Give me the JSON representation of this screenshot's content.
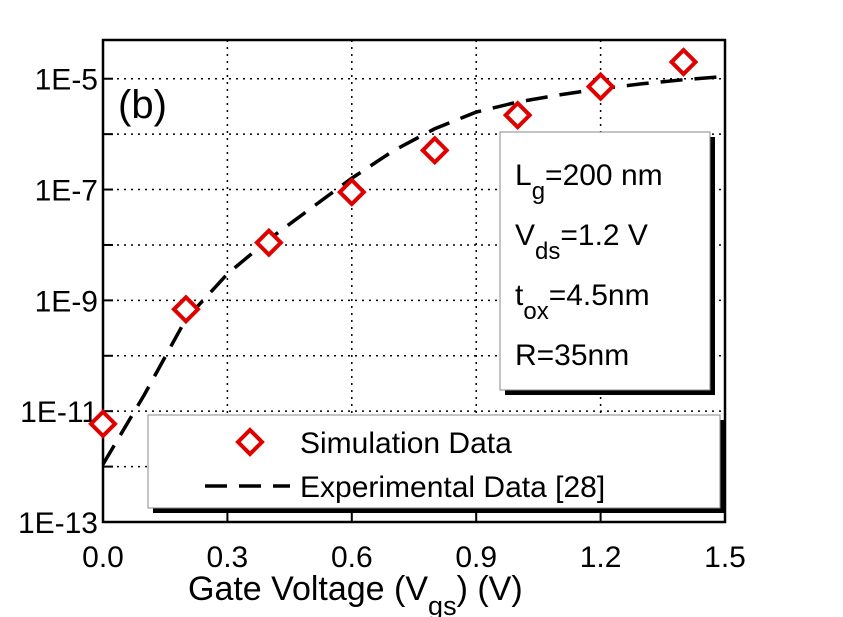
{
  "chart_data": {
    "type": "scatter",
    "annotation": "(b)",
    "info_box": [
      [
        {
          "text": "L"
        },
        {
          "text": "g",
          "sub": true
        },
        {
          "text": "=200 nm"
        }
      ],
      [
        {
          "text": "V"
        },
        {
          "text": "ds",
          "sub": true
        },
        {
          "text": "=1.2 V"
        }
      ],
      [
        {
          "text": "t"
        },
        {
          "text": "ox",
          "sub": true
        },
        {
          "text": "=4.5nm"
        }
      ],
      [
        {
          "text": "R=35nm"
        }
      ]
    ],
    "x_label": [
      {
        "text": "Gate Voltage (V"
      },
      {
        "text": "gs",
        "sub": true
      },
      {
        "text": ") (V)"
      }
    ],
    "xlim": [
      0,
      1.5
    ],
    "xticks": [
      {
        "value": 0,
        "label": "0.0"
      },
      0.3,
      0.6,
      0.9,
      1.2,
      1.5
    ],
    "ylim": [
      1e-13,
      5e-05
    ],
    "y_scale": "log",
    "yticks": [
      {
        "value": 1e-13,
        "label": "1E-13"
      },
      {
        "value": 1e-11,
        "label": "1E-11"
      },
      {
        "value": 1e-09,
        "label": "1E-9"
      },
      {
        "value": 1e-07,
        "label": "1E-7"
      },
      {
        "value": 1e-05,
        "label": "1E-5"
      }
    ],
    "y_minor_ticks": [
      1e-12,
      1e-10,
      1e-08,
      1e-06
    ],
    "grid": true,
    "legend": "bottom",
    "series": [
      {
        "name": "Simulation Data",
        "type": "scatter",
        "color": "#e00000",
        "x": [
          0,
          0.2,
          0.4,
          0.6,
          0.8,
          1.0,
          1.2,
          1.4
        ],
        "values": [
          5.9e-12,
          6.9e-10,
          1.1e-08,
          9e-08,
          5.1e-07,
          2.2e-06,
          7.2e-06,
          2e-05
        ]
      },
      {
        "name": "Experimental Data [28]",
        "type": "line",
        "color": "#000000",
        "dashed": true,
        "x": [
          0,
          0.1,
          0.2,
          0.3,
          0.4,
          0.5,
          0.6,
          0.7,
          0.8,
          0.9,
          1.0,
          1.1,
          1.2,
          1.3,
          1.4,
          1.5
        ],
        "values": [
          1.1e-12,
          2e-11,
          4.6e-10,
          3e-09,
          1.26e-08,
          4.5e-08,
          1.6e-07,
          5e-07,
          1.25e-06,
          2.5e-06,
          3.8e-06,
          5.1e-06,
          6.6e-06,
          8.1e-06,
          9.6e-06,
          1.1e-05
        ]
      }
    ]
  }
}
